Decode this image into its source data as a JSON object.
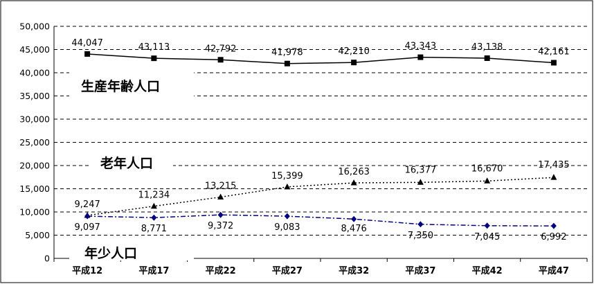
{
  "chart_data": {
    "type": "line",
    "categories": [
      "平成12",
      "平成17",
      "平成22",
      "平成27",
      "平成32",
      "平成37",
      "平成42",
      "平成47"
    ],
    "ylim": [
      0,
      50000
    ],
    "yticks": [
      "50,000",
      "45,000",
      "40,000",
      "35,000",
      "30,000",
      "25,000",
      "20,000",
      "15,000",
      "10,000",
      "5,000",
      "0"
    ],
    "grid": true,
    "series": [
      {
        "name": "生産年齢人口",
        "values": [
          44047,
          43113,
          42792,
          41978,
          42210,
          43343,
          43138,
          42161
        ],
        "labels": [
          "44,047",
          "43,113",
          "42,792",
          "41,978",
          "42,210",
          "43,343",
          "43,138",
          "42,161"
        ],
        "color": "#000000",
        "line_style": "solid",
        "marker": "square"
      },
      {
        "name": "老年人口",
        "values": [
          9247,
          11234,
          13215,
          15399,
          16263,
          16377,
          16670,
          17435
        ],
        "labels": [
          "9,247",
          "11,234",
          "13,215",
          "15,399",
          "16,263",
          "16,377",
          "16,670",
          "17,435"
        ],
        "color": "#000000",
        "line_style": "dotted",
        "marker": "triangle"
      },
      {
        "name": "年少人口",
        "values": [
          9097,
          8771,
          9372,
          9083,
          8476,
          7350,
          7045,
          6992
        ],
        "labels": [
          "9,097",
          "8,771",
          "9,372",
          "9,083",
          "8,476",
          "7,350",
          "7,045",
          "6,992"
        ],
        "color": "#000080",
        "line_style": "dash-dot",
        "marker": "diamond"
      }
    ]
  }
}
